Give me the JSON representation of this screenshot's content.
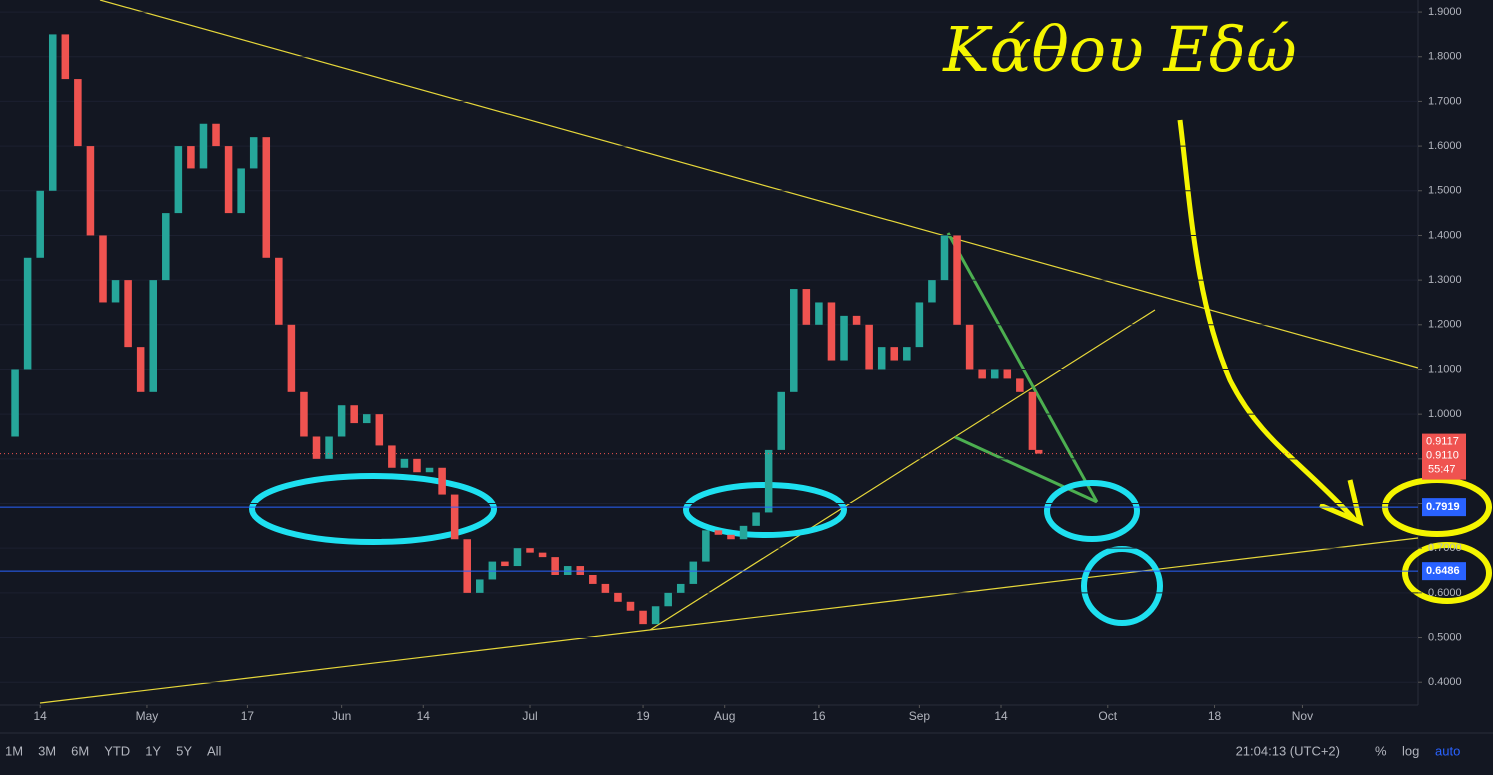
{
  "chart_data": {
    "type": "candlestick",
    "annotation": "Κάθου Εδώ",
    "x": [
      -6,
      -4,
      -2,
      0,
      2,
      4,
      6,
      8,
      10,
      12,
      14,
      16,
      18,
      20,
      22,
      24,
      26,
      28,
      30,
      32,
      34,
      36,
      38,
      40,
      42,
      44,
      46,
      48,
      50,
      52,
      54,
      56,
      58,
      60,
      62,
      64,
      66,
      68,
      70,
      72,
      74,
      76,
      78,
      80,
      82,
      84,
      86,
      88,
      90,
      92,
      94,
      96,
      98,
      100,
      102,
      104,
      106,
      108,
      110,
      112,
      114,
      116,
      118,
      120,
      122,
      124,
      126,
      128,
      130,
      132,
      134,
      136,
      138,
      140,
      142,
      144,
      146,
      148,
      150,
      152,
      154,
      156,
      158,
      159
    ],
    "values": [
      0.95,
      1.1,
      1.35,
      1.5,
      1.85,
      1.75,
      1.6,
      1.4,
      1.25,
      1.3,
      1.15,
      1.05,
      1.3,
      1.45,
      1.6,
      1.55,
      1.65,
      1.6,
      1.45,
      1.55,
      1.62,
      1.35,
      1.2,
      1.05,
      0.95,
      0.9,
      0.95,
      1.02,
      0.98,
      1.0,
      0.93,
      0.88,
      0.9,
      0.87,
      0.88,
      0.82,
      0.72,
      0.6,
      0.63,
      0.67,
      0.66,
      0.7,
      0.69,
      0.68,
      0.64,
      0.66,
      0.64,
      0.62,
      0.6,
      0.58,
      0.56,
      0.53,
      0.57,
      0.6,
      0.62,
      0.67,
      0.74,
      0.73,
      0.72,
      0.75,
      0.78,
      0.92,
      1.05,
      1.28,
      1.2,
      1.25,
      1.12,
      1.22,
      1.2,
      1.1,
      1.15,
      1.12,
      1.15,
      1.25,
      1.3,
      1.4,
      1.2,
      1.1,
      1.08,
      1.1,
      1.08,
      1.05,
      0.92,
      0.9117
    ],
    "up_color": "#26a69a",
    "down_color": "#ef5350",
    "xlim": [
      -6.4,
      219.4
    ],
    "ylim": [
      0.349,
      1.927
    ],
    "xticks": [
      {
        "value": 0,
        "label": "14"
      },
      {
        "value": 17,
        "label": "May"
      },
      {
        "value": 33,
        "label": "17"
      },
      {
        "value": 48,
        "label": "Jun"
      },
      {
        "value": 61,
        "label": "14"
      },
      {
        "value": 78,
        "label": "Jul"
      },
      {
        "value": 96,
        "label": "19"
      },
      {
        "value": 109,
        "label": "Aug"
      },
      {
        "value": 124,
        "label": "16"
      },
      {
        "value": 140,
        "label": "Sep"
      },
      {
        "value": 153,
        "label": "14"
      },
      {
        "value": 170,
        "label": "Oct"
      },
      {
        "value": 187,
        "label": "18"
      },
      {
        "value": 201,
        "label": "Nov"
      }
    ],
    "yticks": [
      {
        "value": 0.4,
        "label": "0.4000"
      },
      {
        "value": 0.5,
        "label": "0.5000"
      },
      {
        "value": 0.6,
        "label": "0.6000"
      },
      {
        "value": 0.7,
        "label": "0.7000"
      },
      {
        "value": 0.8,
        "label": "0.8000"
      },
      {
        "value": 0.9,
        "label": "0.9000"
      },
      {
        "value": 1.0,
        "label": "1.0000"
      },
      {
        "value": 1.1,
        "label": "1.1000"
      },
      {
        "value": 1.2,
        "label": "1.2000"
      },
      {
        "value": 1.3,
        "label": "1.3000"
      },
      {
        "value": 1.4,
        "label": "1.4000"
      },
      {
        "value": 1.5,
        "label": "1.5000"
      },
      {
        "value": 1.6,
        "label": "1.6000"
      },
      {
        "value": 1.7,
        "label": "1.7000"
      },
      {
        "value": 1.8,
        "label": "1.8000"
      },
      {
        "value": 1.9,
        "label": "1.9000"
      }
    ],
    "price_lines": [
      {
        "value": 0.7919,
        "color": "#2962ff"
      },
      {
        "value": 0.6486,
        "color": "#2962ff"
      }
    ],
    "last_price": 0.9117,
    "last_price_alt": {
      "value": 0.911,
      "label": "0.9110"
    },
    "countdown": "55:47",
    "toolbar": {
      "ranges": [
        "1M",
        "3M",
        "6M",
        "YTD",
        "1Y",
        "5Y",
        "All"
      ],
      "clock": "21:04:13 (UTC+2)",
      "options": [
        "%",
        "log",
        "auto"
      ]
    }
  }
}
